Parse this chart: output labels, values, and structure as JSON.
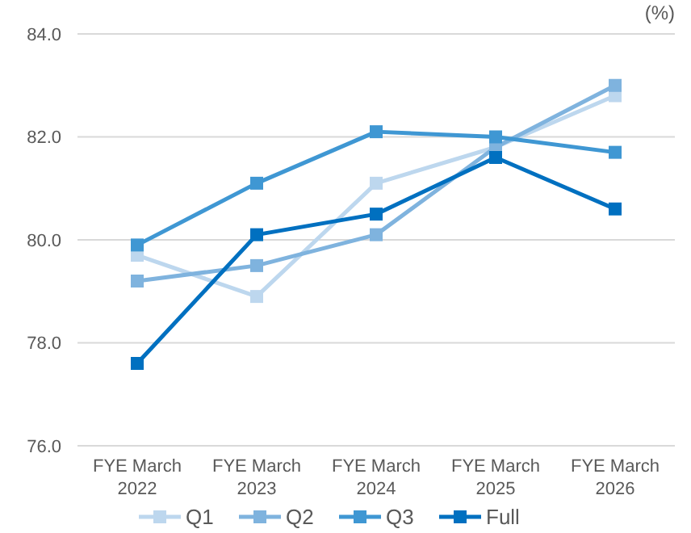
{
  "chart_data": {
    "type": "line",
    "ylabel": "(%)",
    "categories": [
      "FYE March 2022",
      "FYE March 2023",
      "FYE March 2024",
      "FYE March 2025",
      "FYE March 2026"
    ],
    "series": [
      {
        "name": "Q1",
        "color": "#bdd7ee",
        "values": [
          79.7,
          78.9,
          81.1,
          81.8,
          82.8
        ]
      },
      {
        "name": "Q2",
        "color": "#7fb3de",
        "values": [
          79.2,
          79.5,
          80.1,
          81.8,
          83.0
        ]
      },
      {
        "name": "Q3",
        "color": "#3f97d3",
        "values": [
          79.9,
          81.1,
          82.1,
          82.0,
          81.7
        ]
      },
      {
        "name": "Full",
        "color": "#0070c0",
        "values": [
          77.6,
          80.1,
          80.5,
          81.6,
          80.6
        ]
      }
    ],
    "ylim": [
      76,
      84
    ],
    "yticks": [
      {
        "value": 76,
        "label": "76.0"
      },
      {
        "value": 78,
        "label": "78.0"
      },
      {
        "value": 80,
        "label": "80.0"
      },
      {
        "value": 82,
        "label": "82.0"
      },
      {
        "value": 84,
        "label": "84.0"
      }
    ],
    "grid": "y",
    "legend": "bottom",
    "marker": "square",
    "line_style": "solid"
  }
}
